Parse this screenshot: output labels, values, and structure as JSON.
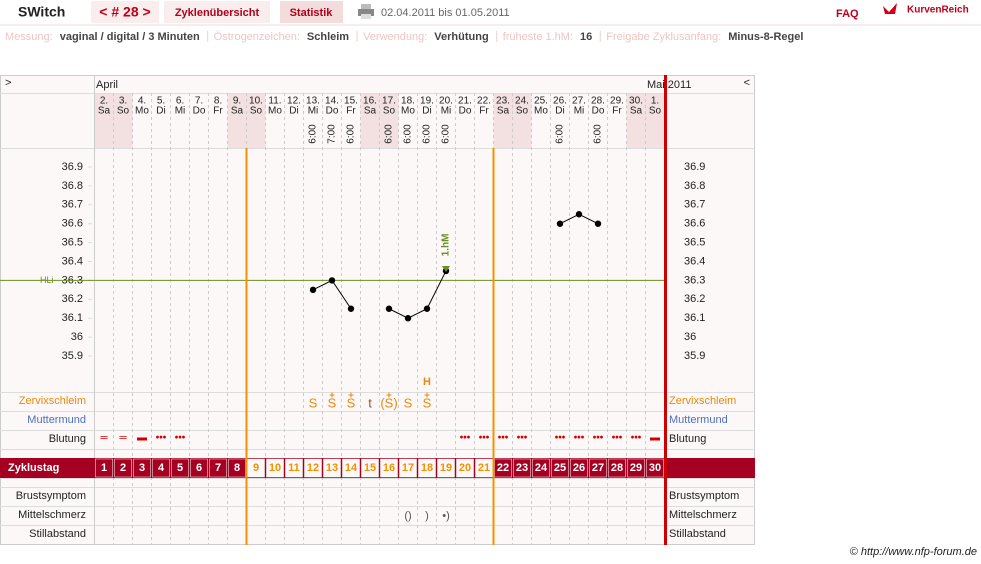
{
  "header": {
    "app": "SWitch",
    "cycle": "< # 28 >",
    "tabs": [
      "Zyklenübersicht",
      "Statistik"
    ],
    "period": "02.04.2011 bis 01.05.2011",
    "faq": "FAQ",
    "brand": "KurvenReich"
  },
  "settings": [
    {
      "label": "Messung:",
      "value": "vaginal / digital / 3 Minuten"
    },
    {
      "label": "Östrogenzeichen:",
      "value": "Schleim"
    },
    {
      "label": "Verwendung:",
      "value": "Verhütung"
    },
    {
      "label": "früheste 1.hM:",
      "value": "16"
    },
    {
      "label": "Freigabe Zyklusanfang:",
      "value": "Minus-8-Regel"
    }
  ],
  "footer": "© http://www.nfp-forum.de",
  "chart_data": {
    "type": "line",
    "nav": [
      ">",
      "<"
    ],
    "months": [
      "April",
      "Mai 2011"
    ],
    "dates": [
      "2.",
      "3.",
      "4.",
      "5.",
      "6.",
      "7.",
      "8.",
      "9.",
      "10.",
      "11.",
      "12.",
      "13.",
      "14.",
      "15.",
      "16.",
      "17.",
      "18.",
      "19.",
      "20.",
      "21.",
      "22.",
      "23.",
      "24.",
      "25.",
      "26.",
      "27.",
      "28.",
      "29.",
      "30.",
      "1."
    ],
    "weekdays": [
      "Sa",
      "So",
      "Mo",
      "Di",
      "Mi",
      "Do",
      "Fr",
      "Sa",
      "So",
      "Mo",
      "Di",
      "Mi",
      "Do",
      "Fr",
      "Sa",
      "So",
      "Mo",
      "Di",
      "Mi",
      "Do",
      "Fr",
      "Sa",
      "So",
      "Mo",
      "Di",
      "Mi",
      "Do",
      "Fr",
      "Sa",
      "So"
    ],
    "shaded_weekdays": [
      "Sa",
      "So"
    ],
    "times": [
      null,
      null,
      null,
      null,
      null,
      null,
      null,
      null,
      null,
      null,
      null,
      "6:00",
      "7:00",
      "6:00",
      null,
      "6:00",
      "6:00",
      "6:00",
      "6:00",
      null,
      null,
      null,
      null,
      null,
      "6:00",
      null,
      "6:00",
      null,
      null,
      null
    ],
    "categories": [
      "1",
      "2",
      "3",
      "4",
      "5",
      "6",
      "7",
      "8",
      "9",
      "10",
      "11",
      "12",
      "13",
      "14",
      "15",
      "16",
      "17",
      "18",
      "19",
      "20",
      "21",
      "22",
      "23",
      "24",
      "25",
      "26",
      "27",
      "28",
      "29",
      "30"
    ],
    "values": [
      null,
      null,
      null,
      null,
      null,
      null,
      null,
      null,
      null,
      null,
      null,
      36.25,
      36.3,
      36.15,
      null,
      36.15,
      36.1,
      36.15,
      36.35,
      null,
      null,
      null,
      null,
      null,
      36.6,
      36.65,
      36.6,
      null,
      null,
      null
    ],
    "color": "#000000",
    "ylim": [
      35.7,
      37.0
    ],
    "yticks": [
      35.9,
      36,
      36.1,
      36.2,
      36.3,
      36.4,
      36.5,
      36.6,
      36.7,
      36.8,
      36.9
    ],
    "hli": {
      "label": "HLi",
      "value": 36.3,
      "color": "#6b8e23"
    },
    "annotation": {
      "text": "1.hM",
      "category": "19",
      "color": "#6b8e23"
    },
    "fertile_days": {
      "first": "9",
      "last": "21",
      "color": "#f39200"
    },
    "row_labels": [
      "Zervixschleim",
      "Muttermund",
      "Blutung",
      "Zyklustag",
      "Brustsymptom",
      "Mittelschmerz",
      "Stillabstand"
    ],
    "row_colors": [
      "#e8890c",
      "#4a6fc2",
      "#222222",
      "#ffffff",
      "#222222",
      "#222222",
      "#222222"
    ],
    "mucus": [
      null,
      null,
      null,
      null,
      null,
      null,
      null,
      null,
      null,
      null,
      null,
      {
        "text": "S",
        "plus": false
      },
      {
        "text": "S",
        "plus": true
      },
      {
        "text": "S",
        "plus": true
      },
      {
        "text": "t",
        "plus": false
      },
      {
        "text": "(S)",
        "plus": true
      },
      {
        "text": "S",
        "plus": false
      },
      {
        "text": "S",
        "plus": true,
        "peak": "H"
      },
      null,
      null,
      null,
      null,
      null,
      null,
      null,
      null,
      null,
      null,
      null,
      null
    ],
    "bleeding": [
      "═",
      "═",
      "▬",
      "•••",
      "•••",
      null,
      null,
      null,
      null,
      null,
      null,
      null,
      null,
      null,
      null,
      null,
      null,
      null,
      null,
      "•••",
      "•••",
      "•••",
      "•••",
      null,
      "•••",
      "•••",
      "•••",
      "•••",
      "•••",
      "▬"
    ],
    "pain": [
      null,
      null,
      null,
      null,
      null,
      null,
      null,
      null,
      null,
      null,
      null,
      null,
      null,
      null,
      null,
      null,
      "()",
      ")",
      "•)",
      null,
      null,
      null,
      null,
      null,
      null,
      null,
      null,
      null,
      null,
      null
    ]
  }
}
